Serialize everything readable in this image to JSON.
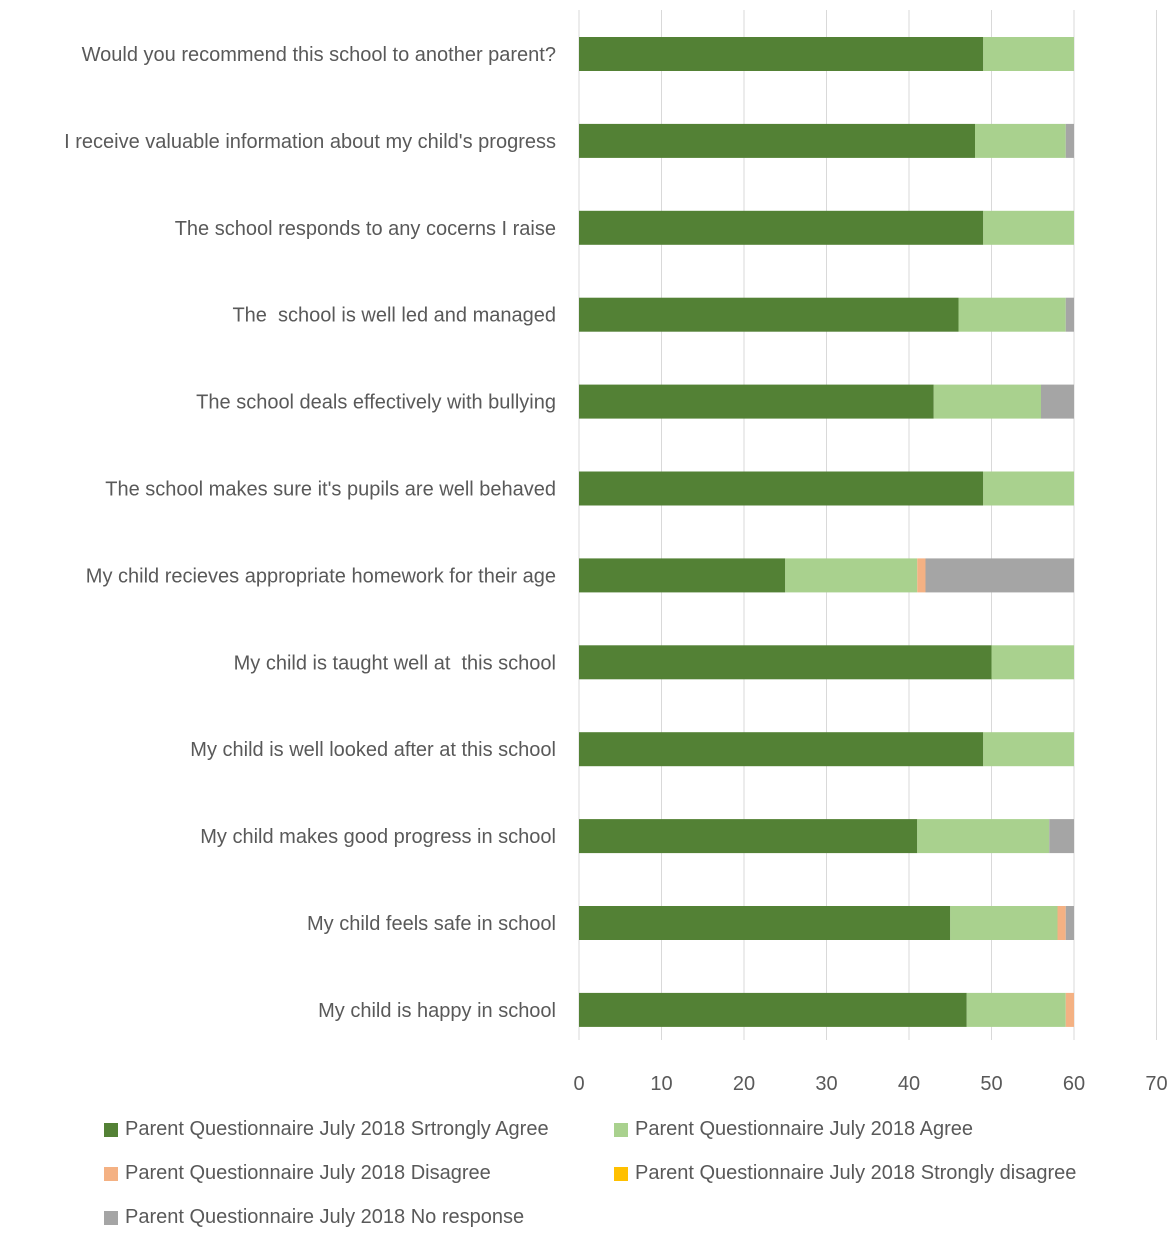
{
  "chart_data": {
    "type": "bar",
    "orientation": "horizontal",
    "stacked": true,
    "categories": [
      "Would you recommend this school to another parent?",
      "I receive valuable information about my child's progress",
      "The school responds to any cocerns I raise",
      "The  school is well led and managed",
      "The school deals effectively with bullying",
      "The school makes sure it's pupils are well behaved",
      "My child recieves appropriate homework for their age",
      "My child is taught well at  this school",
      "My child is well looked after at this school",
      "My child makes good progress in school",
      "My child feels safe in school",
      "My child is happy in school"
    ],
    "series": [
      {
        "name": "Parent Questionnaire July 2018 Srtrongly Agree",
        "color": "#538135",
        "values": [
          49,
          48,
          49,
          46,
          43,
          49,
          25,
          50,
          49,
          41,
          45,
          47
        ]
      },
      {
        "name": "Parent Questionnaire July 2018 Agree",
        "color": "#a9d18e",
        "values": [
          11,
          11,
          11,
          13,
          13,
          11,
          16,
          10,
          11,
          16,
          13,
          12
        ]
      },
      {
        "name": "Parent Questionnaire July 2018 Disagree",
        "color": "#f4b183",
        "values": [
          0,
          0,
          0,
          0,
          0,
          0,
          1,
          0,
          0,
          0,
          1,
          1
        ]
      },
      {
        "name": "Parent Questionnaire July 2018 Strongly disagree",
        "color": "#ffc000",
        "values": [
          0,
          0,
          0,
          0,
          0,
          0,
          0,
          0,
          0,
          0,
          0,
          0
        ]
      },
      {
        "name": "Parent Questionnaire July 2018 No response",
        "color": "#a5a5a5",
        "values": [
          0,
          1,
          0,
          1,
          4,
          0,
          18,
          0,
          0,
          3,
          1,
          0
        ]
      }
    ],
    "xlim": [
      0,
      70
    ],
    "xticks": [
      "0",
      "10",
      "20",
      "30",
      "40",
      "50",
      "60",
      "70"
    ],
    "grid": true,
    "legend_position": "bottom"
  }
}
